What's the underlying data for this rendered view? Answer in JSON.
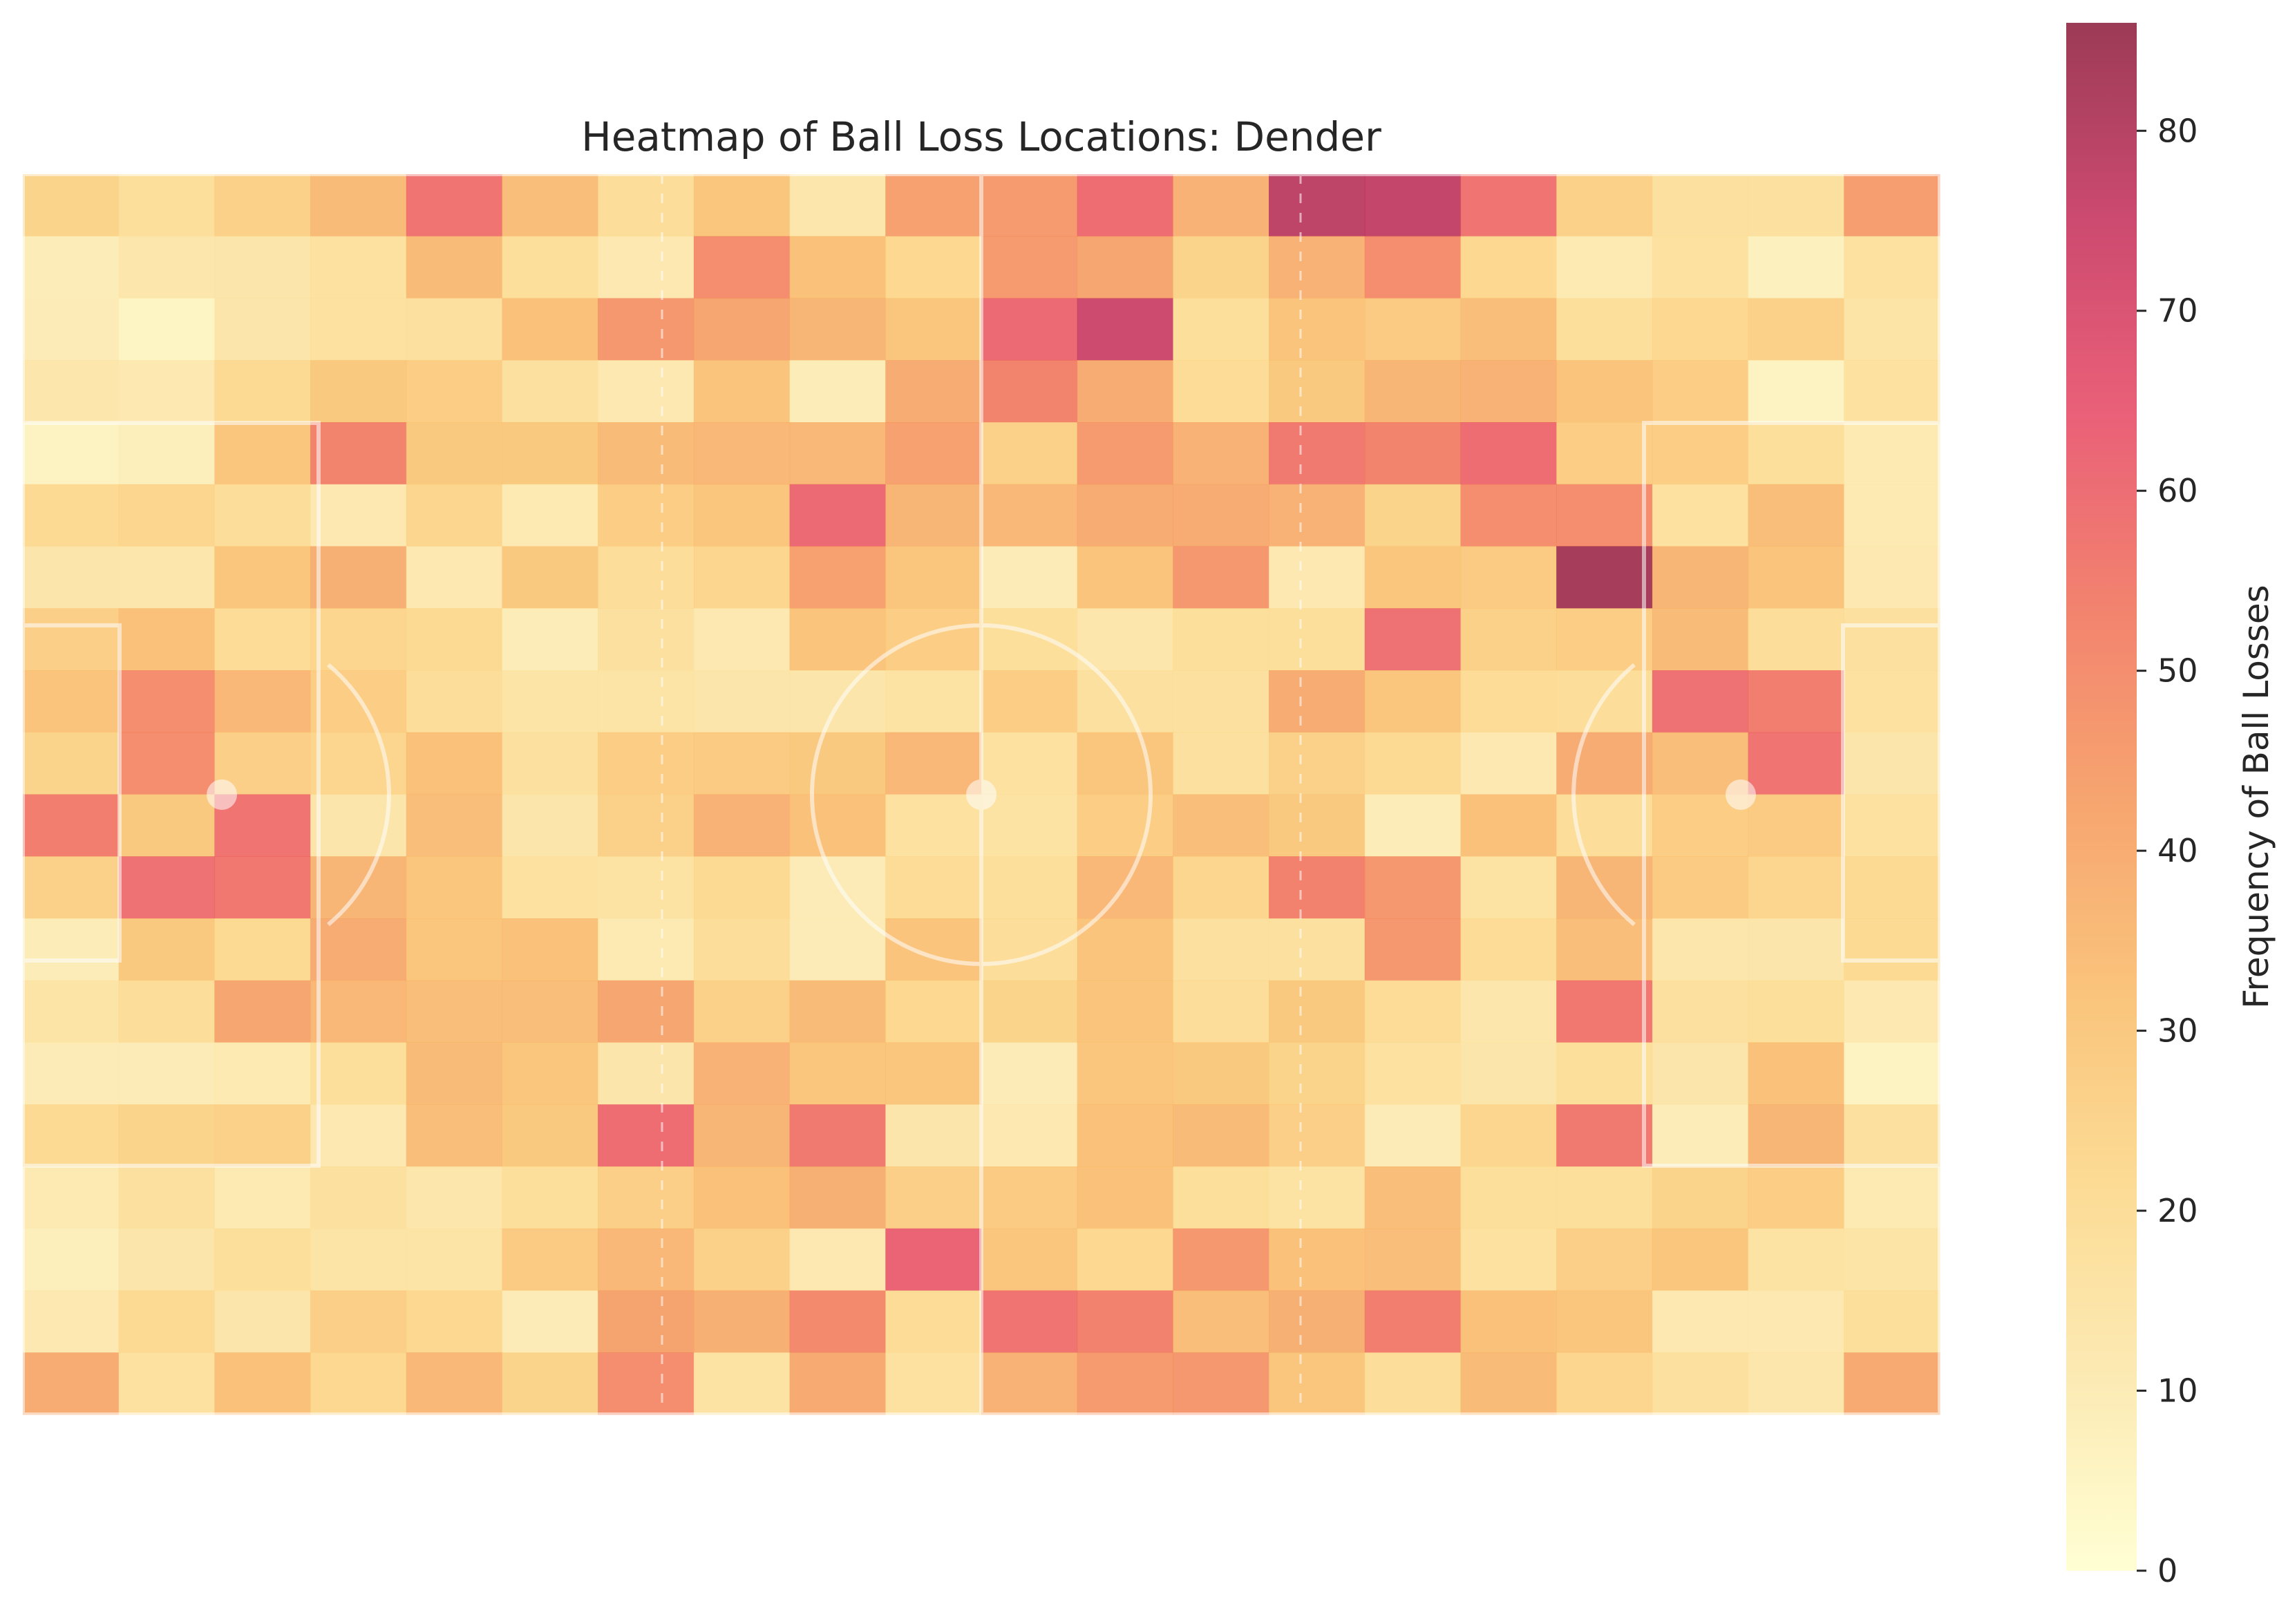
{
  "chart_data": {
    "type": "heatmap",
    "title": "Heatmap of Ball Loss Locations: Dender",
    "colorbar": {
      "label": "Frequency of Ball Losses",
      "ticks": [
        0,
        10,
        20,
        30,
        40,
        50,
        60,
        70,
        80
      ],
      "range": [
        0,
        86
      ],
      "colormap": "YlOrRd-like (cream → yellow → orange → red → dark maroon)",
      "colors": [
        "#ffffcc",
        "#fbe6a6",
        "#fbd582",
        "#f9b964",
        "#f59456",
        "#f06c55",
        "#e54360",
        "#c32a56",
        "#8a1838"
      ]
    },
    "grid": {
      "rows": 20,
      "cols": 20
    },
    "values": [
      [
        25,
        19,
        26,
        35,
        58,
        34,
        20,
        31,
        13,
        44,
        46,
        60,
        38,
        78,
        77,
        58,
        26,
        18,
        18,
        45
      ],
      [
        9,
        13,
        14,
        17,
        35,
        19,
        12,
        50,
        33,
        23,
        46,
        42,
        25,
        38,
        50,
        23,
        11,
        17,
        7,
        17
      ],
      [
        10,
        5,
        14,
        17,
        18,
        33,
        47,
        42,
        37,
        31,
        61,
        75,
        19,
        32,
        29,
        34,
        19,
        23,
        26,
        15
      ],
      [
        13,
        12,
        22,
        30,
        28,
        18,
        12,
        32,
        9,
        40,
        53,
        40,
        21,
        30,
        37,
        38,
        32,
        28,
        6,
        17
      ],
      [
        6,
        8,
        31,
        53,
        30,
        30,
        35,
        36,
        36,
        44,
        26,
        46,
        38,
        56,
        53,
        60,
        28,
        28,
        19,
        11
      ],
      [
        22,
        24,
        20,
        12,
        24,
        11,
        28,
        31,
        61,
        37,
        36,
        40,
        40,
        38,
        25,
        50,
        50,
        17,
        34,
        11
      ],
      [
        14,
        13,
        31,
        39,
        12,
        30,
        20,
        24,
        44,
        31,
        10,
        32,
        47,
        12,
        31,
        29,
        84,
        37,
        32,
        12
      ],
      [
        27,
        33,
        21,
        24,
        22,
        9,
        18,
        12,
        32,
        28,
        19,
        13,
        19,
        19,
        59,
        26,
        28,
        35,
        20,
        18
      ],
      [
        32,
        50,
        36,
        28,
        20,
        15,
        15,
        14,
        14,
        16,
        28,
        18,
        18,
        40,
        31,
        21,
        20,
        59,
        55,
        17
      ],
      [
        25,
        50,
        27,
        24,
        33,
        18,
        28,
        29,
        30,
        36,
        17,
        31,
        18,
        26,
        22,
        12,
        40,
        34,
        58,
        14
      ],
      [
        55,
        30,
        58,
        14,
        34,
        14,
        26,
        38,
        33,
        17,
        16,
        28,
        34,
        30,
        9,
        33,
        20,
        28,
        29,
        17
      ],
      [
        26,
        59,
        57,
        37,
        31,
        17,
        16,
        22,
        10,
        21,
        19,
        36,
        24,
        54,
        47,
        16,
        37,
        29,
        24,
        22
      ],
      [
        9,
        30,
        22,
        40,
        31,
        33,
        11,
        20,
        10,
        32,
        20,
        32,
        18,
        18,
        47,
        21,
        34,
        13,
        14,
        22
      ],
      [
        15,
        20,
        42,
        36,
        34,
        34,
        42,
        26,
        35,
        23,
        25,
        32,
        20,
        30,
        21,
        13,
        57,
        18,
        19,
        12
      ],
      [
        10,
        10,
        11,
        19,
        35,
        31,
        14,
        38,
        31,
        31,
        10,
        31,
        30,
        25,
        17,
        14,
        19,
        14,
        33,
        6
      ],
      [
        22,
        25,
        26,
        12,
        34,
        30,
        60,
        37,
        56,
        14,
        12,
        33,
        35,
        27,
        10,
        24,
        56,
        9,
        37,
        18
      ],
      [
        11,
        18,
        11,
        18,
        13,
        19,
        27,
        33,
        39,
        27,
        29,
        33,
        19,
        16,
        34,
        19,
        19,
        25,
        28,
        11
      ],
      [
        8,
        14,
        19,
        15,
        15,
        29,
        36,
        26,
        12,
        63,
        31,
        23,
        47,
        33,
        34,
        17,
        27,
        31,
        16,
        15
      ],
      [
        12,
        22,
        14,
        27,
        23,
        10,
        43,
        39,
        51,
        21,
        58,
        54,
        34,
        39,
        55,
        33,
        31,
        12,
        12,
        19
      ],
      [
        40,
        17,
        33,
        23,
        36,
        25,
        50,
        16,
        41,
        17,
        38,
        46,
        47,
        31,
        20,
        35,
        24,
        18,
        13,
        41
      ]
    ],
    "x_ticks_visible": false,
    "y_ticks_visible": false,
    "background": "football pitch outline overlay (white lines)"
  }
}
